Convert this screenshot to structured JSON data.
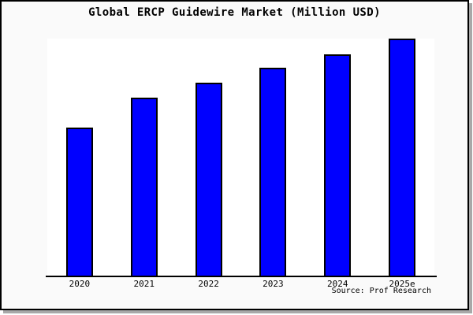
{
  "window": {
    "background": "#fafafa",
    "plot_background": "#ffffff",
    "border_color": "#000000",
    "shadow_color": "#a8a8a8"
  },
  "chart_data": {
    "type": "bar",
    "title": "Global ERCP Guidewire Market (Million USD)",
    "categories": [
      "2020",
      "2021",
      "2022",
      "2023",
      "2024",
      "2025e"
    ],
    "values": [
      188,
      226,
      245,
      264,
      281,
      301
    ],
    "ylim": [
      0,
      301
    ],
    "xlabel": "",
    "ylabel": "",
    "y_axis_visible": false,
    "grid": false,
    "legend": "none",
    "note": "no y-axis tick labels shown; values are relative bar heights",
    "bar_color": "#0000ff",
    "bar_border_color": "#000000",
    "source": "Source: Prof Research"
  }
}
